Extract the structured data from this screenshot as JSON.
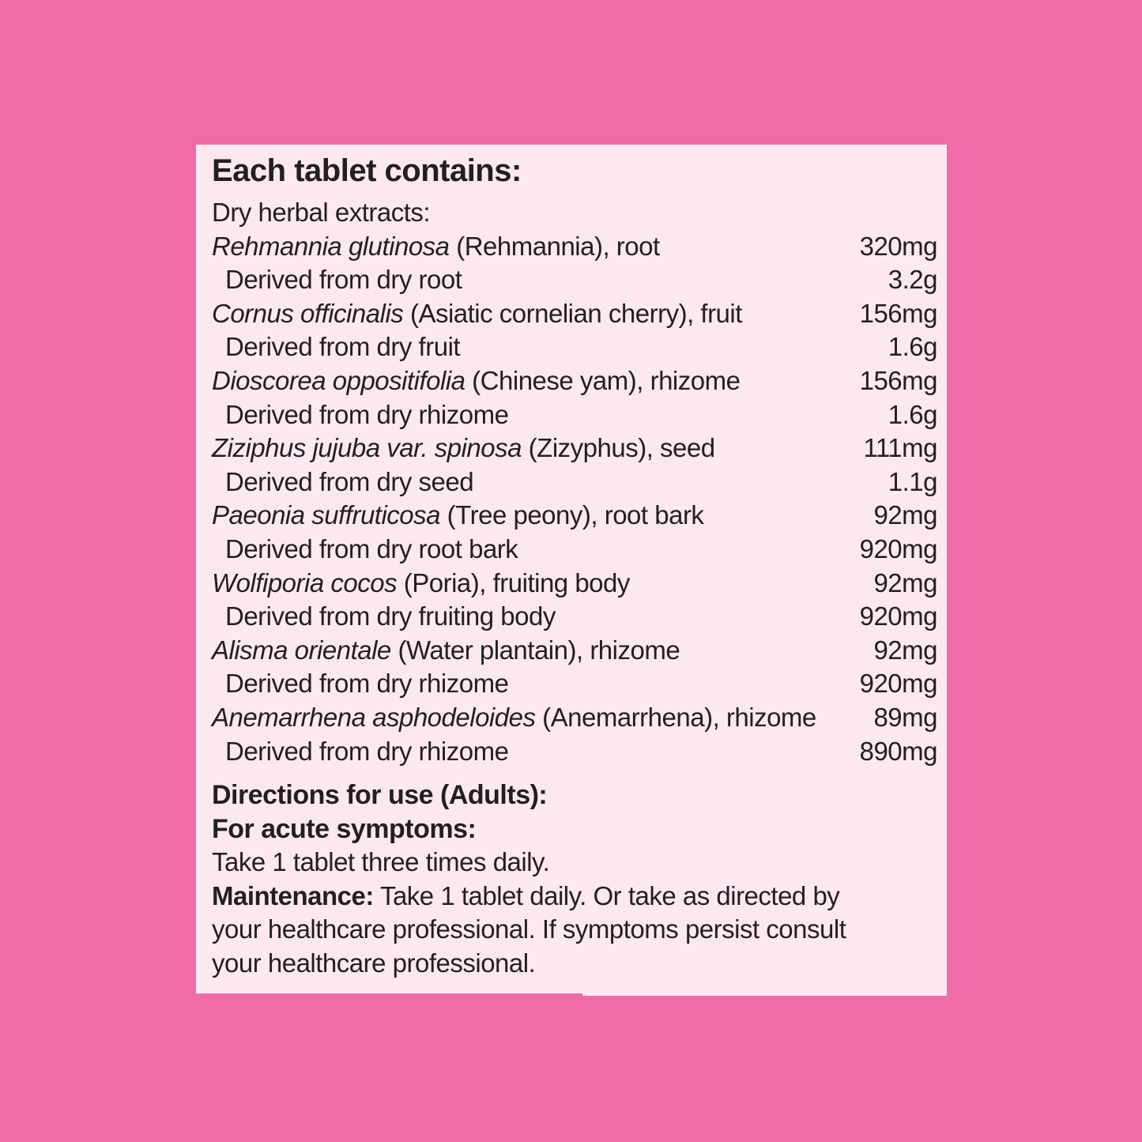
{
  "colors": {
    "page-bg": "#f06ca8",
    "panel-bg": "#fce8f1",
    "text": "#231f20"
  },
  "panel": {
    "heading": "Each tablet contains:",
    "subheading": "Dry herbal extracts:",
    "ingredients": [
      {
        "latin": "Rehmannia glutinosa",
        "rest": " (Rehmannia), root",
        "amount": "320mg",
        "derived": "Derived from dry root",
        "derived_amount": "3.2g"
      },
      {
        "latin": "Cornus officinalis",
        "rest": " (Asiatic cornelian cherry), fruit",
        "amount": "156mg",
        "derived": "Derived from dry fruit",
        "derived_amount": "1.6g"
      },
      {
        "latin": "Dioscorea oppositifolia",
        "rest": " (Chinese yam), rhizome",
        "amount": "156mg",
        "derived": "Derived from dry rhizome",
        "derived_amount": "1.6g"
      },
      {
        "latin": "Ziziphus jujuba var. spinosa",
        "rest": " (Zizyphus), seed",
        "amount": "111mg",
        "derived": "Derived from dry seed",
        "derived_amount": "1.1g"
      },
      {
        "latin": "Paeonia suffruticosa",
        "rest": " (Tree peony), root bark",
        "amount": "92mg",
        "derived": "Derived from dry root bark",
        "derived_amount": "920mg"
      },
      {
        "latin": "Wolfiporia cocos",
        "rest": " (Poria), fruiting body",
        "amount": "92mg",
        "derived": "Derived from dry fruiting body",
        "derived_amount": "920mg"
      },
      {
        "latin": "Alisma orientale",
        "rest": " (Water plantain), rhizome",
        "amount": "92mg",
        "derived": "Derived from dry rhizome",
        "derived_amount": "920mg"
      },
      {
        "latin": "Anemarrhena asphodeloides",
        "rest": " (Anemarrhena), rhizome",
        "amount": "89mg",
        "derived": "Derived from dry rhizome",
        "derived_amount": "890mg"
      }
    ],
    "directions": {
      "heading": "Directions for use (Adults):",
      "acute_heading": "For acute symptoms:",
      "acute_text": "Take 1 tablet three times daily.",
      "maintenance_label": "Maintenance:",
      "maintenance_line1": " Take 1 tablet daily. Or take as directed by",
      "maintenance_line2": "your healthcare professional. If symptoms persist consult",
      "maintenance_line3": "your healthcare professional."
    }
  }
}
